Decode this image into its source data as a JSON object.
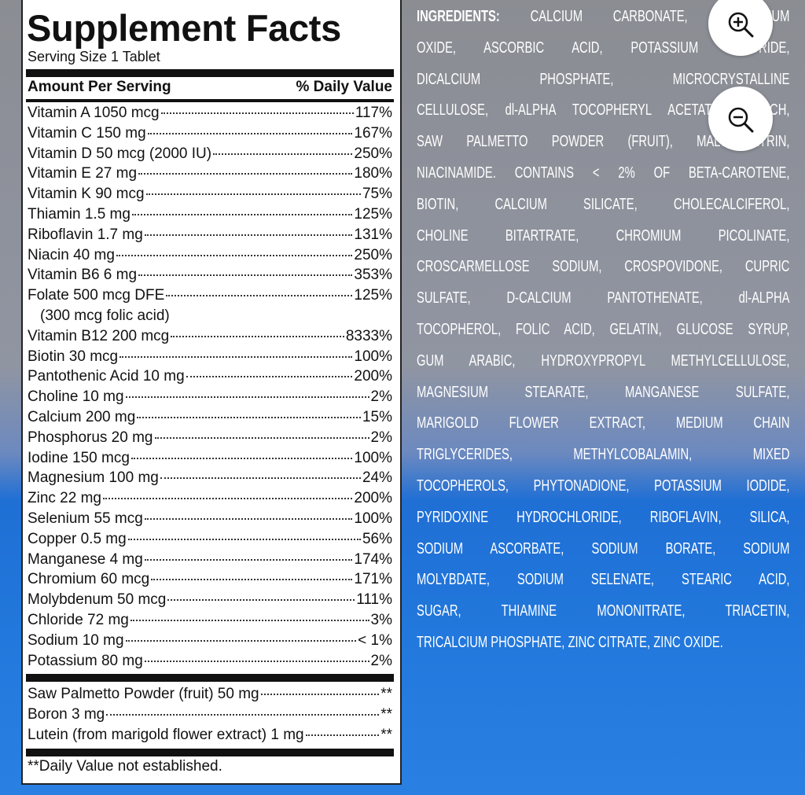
{
  "facts": {
    "title": "Supplement Facts",
    "serving_size": "Serving Size 1 Tablet",
    "header": {
      "amount": "Amount Per Serving",
      "daily_value": "% Daily Value"
    },
    "rows": [
      {
        "name": "Vitamin A 1050 mcg",
        "dv": "117%"
      },
      {
        "name": "Vitamin C 150 mg",
        "dv": "167%"
      },
      {
        "name": "Vitamin D 50 mcg (2000 IU)",
        "dv": "250%"
      },
      {
        "name": "Vitamin E 27 mg",
        "dv": "180%"
      },
      {
        "name": "Vitamin K 90 mcg",
        "dv": "75%"
      },
      {
        "name": "Thiamin 1.5 mg",
        "dv": "125%"
      },
      {
        "name": "Riboflavin 1.7 mg",
        "dv": "131%"
      },
      {
        "name": "Niacin 40 mg",
        "dv": "250%"
      },
      {
        "name": "Vitamin B6 6 mg",
        "dv": "353%"
      },
      {
        "name": "Folate 500 mcg DFE",
        "dv": "125%",
        "note": "(300 mcg folic acid)"
      },
      {
        "name": "Vitamin B12 200 mcg",
        "dv": "8333%"
      },
      {
        "name": "Biotin 30 mcg",
        "dv": "100%"
      },
      {
        "name": "Pantothenic Acid 10 mg",
        "dv": "200%"
      },
      {
        "name": "Choline 10 mg",
        "dv": "2%"
      },
      {
        "name": "Calcium 200 mg",
        "dv": "15%"
      },
      {
        "name": "Phosphorus 20 mg",
        "dv": "2%"
      },
      {
        "name": "Iodine 150 mcg",
        "dv": "100%"
      },
      {
        "name": "Magnesium 100 mg",
        "dv": "24%"
      },
      {
        "name": "Zinc 22 mg",
        "dv": "200%"
      },
      {
        "name": "Selenium 55 mcg",
        "dv": "100%"
      },
      {
        "name": "Copper 0.5 mg",
        "dv": "56%"
      },
      {
        "name": "Manganese 4 mg",
        "dv": "174%"
      },
      {
        "name": "Chromium 60 mcg",
        "dv": "171%"
      },
      {
        "name": "Molybdenum 50 mcg",
        "dv": "111%"
      },
      {
        "name": "Chloride 72 mg",
        "dv": "3%"
      },
      {
        "name": "Sodium 10 mg",
        "dv": "< 1%"
      },
      {
        "name": "Potassium 80 mg",
        "dv": "2%"
      }
    ],
    "others": [
      {
        "name": "Saw Palmetto Powder (fruit) 50 mg",
        "dv": "**"
      },
      {
        "name": "Boron 3 mg",
        "dv": "**"
      },
      {
        "name": "Lutein (from marigold flower extract) 1 mg",
        "dv": "**"
      }
    ],
    "footnote": "**Daily Value not established."
  },
  "ingredients": {
    "label": "INGREDIENTS:",
    "lines": [
      "CALCIUM CARBONATE, MAGNESIUM",
      "OXIDE, ASCORBIC ACID, POTASSIUM CHLORIDE,",
      "DICALCIUM PHOSPHATE, MICROCRYSTALLINE",
      "CELLULOSE, dl-ALPHA TOCOPHERYL ACETATE, STARCH,",
      "SAW PALMETTO POWDER (FRUIT), MALTODEXTRIN,",
      "NIACINAMIDE. CONTAINS < 2% OF BETA-CAROTENE,",
      "BIOTIN, CALCIUM SILICATE, CHOLECALCIFEROL,",
      "CHOLINE BITARTRATE, CHROMIUM PICOLINATE,",
      "CROSCARMELLOSE SODIUM, CROSPOVIDONE, CUPRIC",
      "SULFATE, D-CALCIUM PANTOTHENATE, dl-ALPHA",
      "TOCOPHEROL, FOLIC ACID, GELATIN, GLUCOSE SYRUP,",
      "GUM ARABIC, HYDROXYPROPYL METHYLCELLULOSE,",
      "MAGNESIUM STEARATE, MANGANESE SULFATE,",
      "MARIGOLD FLOWER EXTRACT, MEDIUM CHAIN",
      "TRIGLYCERIDES, METHYLCOBALAMIN, MIXED",
      "TOCOPHEROLS, PHYTONADIONE, POTASSIUM IODIDE,",
      "PYRIDOXINE HYDROCHLORIDE, RIBOFLAVIN, SILICA,",
      "SODIUM ASCORBATE, SODIUM BORATE, SODIUM",
      "MOLYBDATE, SODIUM SELENATE, STEARIC ACID,",
      "SUGAR, THIAMINE MONONITRATE, TRIACETIN,",
      "TRICALCIUM PHOSPHATE, ZINC CITRATE, ZINC OXIDE."
    ]
  }
}
